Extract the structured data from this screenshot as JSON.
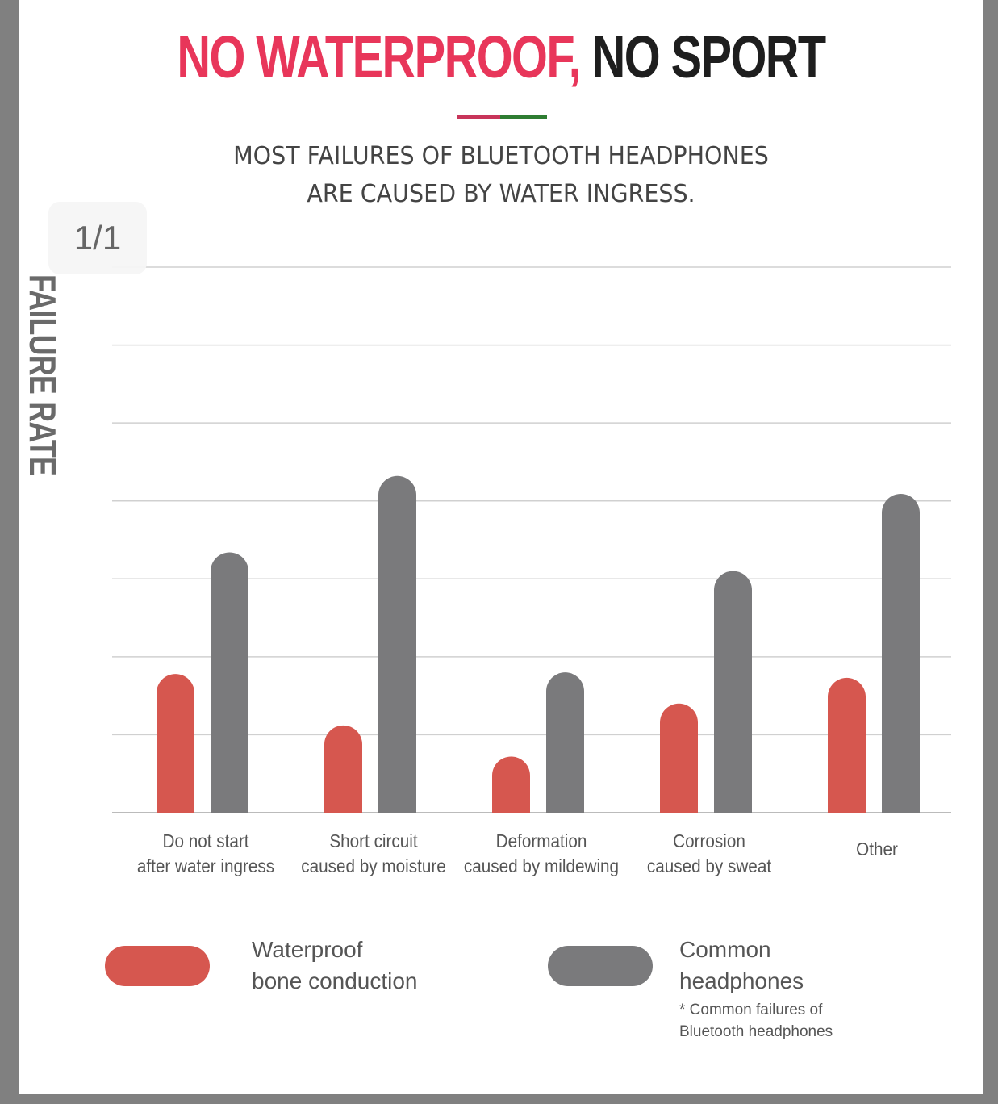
{
  "page_counter": "1/1",
  "chart_data": {
    "type": "bar",
    "title_highlight": "NO WATERPROOF,",
    "title": "NO SPORT",
    "subtitle": "MOST FAILURES OF BLUETOOTH HEADPHONES\nARE CAUSED BY WATER INGRESS.",
    "y_label": "FAILURE RATE",
    "categories": [
      "Do not start\nafter water ingress",
      "Short circuit\ncaused by moisture",
      "Deformation\ncaused by mildewing",
      "Corrosion\ncaused by sweat",
      "Other"
    ],
    "series": [
      {
        "name": "Waterproof\nbone conduction",
        "color": "#d6574f",
        "values": [
          1.78,
          1.12,
          0.72,
          1.4,
          1.73
        ]
      },
      {
        "name": "Common\nheadphones",
        "color": "#7a7a7c",
        "values": [
          3.34,
          4.32,
          1.8,
          3.1,
          4.09
        ]
      }
    ],
    "note": "* Common failures of Bluetooth headphones",
    "ylim": [
      0,
      7
    ],
    "yticks": [
      0,
      1,
      2,
      3,
      4,
      5,
      6,
      7
    ],
    "grid": true
  }
}
